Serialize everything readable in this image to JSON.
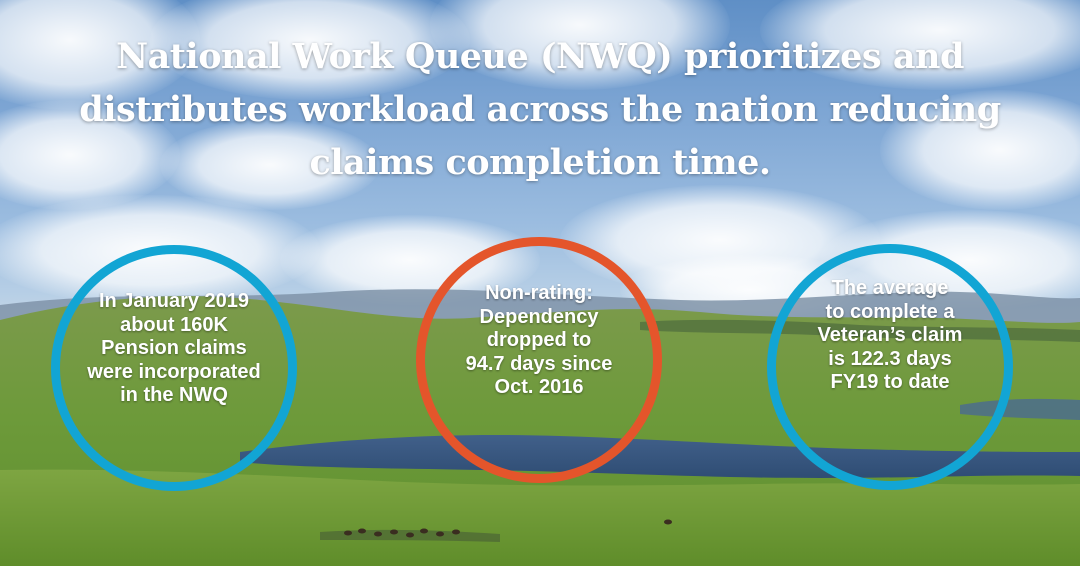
{
  "headline": "National Work Queue (NWQ) prioritizes and distributes workload across the nation reducing claims completion time.",
  "stats": [
    {
      "text": "In January 2019\nabout 160K\nPension claims\nwere incorporated\nin the NWQ",
      "ring_color": "#12a5d4"
    },
    {
      "text": "Non-rating:\nDependency\ndropped to\n94.7 days since\nOct. 2016",
      "ring_color": "#e4552b"
    },
    {
      "text": "The average\nto complete a\nVeteran’s claim\nis 122.3 days\nFY19 to date",
      "ring_color": "#12a5d4"
    }
  ],
  "background": "landscape-photo"
}
